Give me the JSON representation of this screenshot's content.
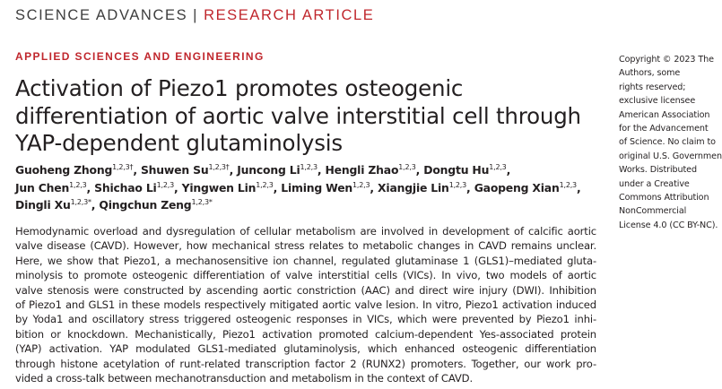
{
  "header": {
    "journal": "SCIENCE ADVANCES",
    "divider": "|",
    "article_type": "RESEARCH ARTICLE"
  },
  "section": "APPLIED SCIENCES AND ENGINEERING",
  "title_lines": [
    "Activation of Piezo1 promotes osteogenic",
    "differentiation of aortic valve interstitial cell through",
    "YAP-dependent glutaminolysis"
  ],
  "author_separator": ",",
  "author_lines": [
    [
      {
        "name": "Guoheng Zhong",
        "sup": "1,2,3†"
      },
      {
        "name": "Shuwen Su",
        "sup": "1,2,3†"
      },
      {
        "name": "Juncong Li",
        "sup": "1,2,3"
      },
      {
        "name": "Hengli Zhao",
        "sup": "1,2,3"
      },
      {
        "name": "Dongtu Hu",
        "sup": "1,2,3"
      }
    ],
    [
      {
        "name": "Jun Chen",
        "sup": "1,2,3"
      },
      {
        "name": "Shichao Li",
        "sup": "1,2,3"
      },
      {
        "name": "Yingwen Lin",
        "sup": "1,2,3"
      },
      {
        "name": "Liming Wen",
        "sup": "1,2,3"
      },
      {
        "name": "Xiangjie Lin",
        "sup": "1,2,3"
      },
      {
        "name": "Gaopeng Xian",
        "sup": "1,2,3"
      }
    ],
    [
      {
        "name": "Dingli Xu",
        "sup": "1,2,3*"
      },
      {
        "name": "Qingchun Zeng",
        "sup": "1,2,3*"
      }
    ]
  ],
  "abstract_lines": [
    "Hemodynamic overload and dysregulation of cellular metabolism are involved in development of calcific aortic",
    "valve disease (CAVD). However, how mechanical stress relates to metabolic changes in CAVD remains unclear.",
    "Here, we show that Piezo1, a mechanosensitive ion channel, regulated glutaminase 1 (GLS1)–mediated gluta-",
    "minolysis to promote osteogenic differentiation of valve interstitial cells (VICs). In vivo, two models of aortic",
    "valve stenosis were constructed by ascending aortic constriction (AAC) and direct wire injury (DWI). Inhibition",
    "of Piezo1 and GLS1 in these models respectively mitigated aortic valve lesion. In vitro, Piezo1 activation induced",
    "by Yoda1 and oscillatory stress triggered osteogenic responses in VICs, which were prevented by Piezo1 inhi-",
    "bition or knockdown. Mechanistically, Piezo1 activation promoted calcium-dependent Yes-associated protein",
    "(YAP) activation. YAP modulated GLS1-mediated glutaminolysis, which enhanced osteogenic differentiation",
    "through histone acetylation of runt-related transcription factor 2 (RUNX2) promoters. Together, our work pro-",
    "vided a cross-talk between mechanotransduction and metabolism in the context of CAVD."
  ],
  "copyright_lines": [
    "Copyright © 2023 The",
    "Authors, some",
    "rights reserved;",
    "exclusive licensee",
    "American Association",
    "for the Advancement",
    "of Science. No claim to",
    "original U.S. Government",
    "Works. Distributed",
    "under a Creative",
    "Commons Attribution",
    "NonCommercial",
    "License 4.0 (CC BY-NC)."
  ]
}
